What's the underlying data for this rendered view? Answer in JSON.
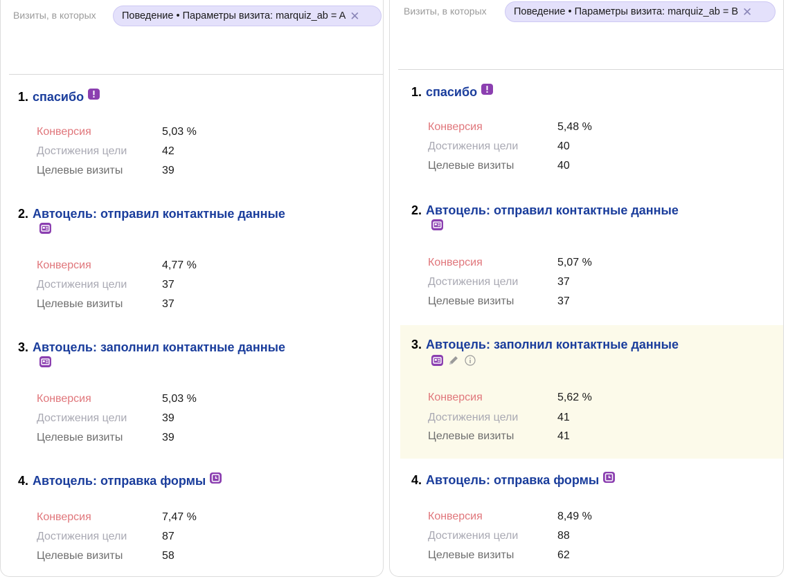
{
  "panels": [
    {
      "filter_label": "Визиты, в которых",
      "chip": "Поведение • Параметры визита: marquiz_ab = A",
      "goals": [
        {
          "num": "1.",
          "name": "спасибо",
          "icon": "exclamation-badge-icon",
          "conv_label": "Конверсия",
          "conv": "5,03 %",
          "reach_label": "Достижения цели",
          "reach": "42",
          "visits_label": "Целевые визиты",
          "visits": "39"
        },
        {
          "num": "2.",
          "name": "Автоцель: отправил контактные данные",
          "icon": "contact-card-icon",
          "conv_label": "Конверсия",
          "conv": "4,77 %",
          "reach_label": "Достижения цели",
          "reach": "37",
          "visits_label": "Целевые визиты",
          "visits": "37"
        },
        {
          "num": "3.",
          "name": "Автоцель: заполнил контактные данные",
          "icon": "contact-card-icon",
          "conv_label": "Конверсия",
          "conv": "5,03 %",
          "reach_label": "Достижения цели",
          "reach": "39",
          "visits_label": "Целевые визиты",
          "visits": "39"
        },
        {
          "num": "4.",
          "name": "Автоцель: отправка формы",
          "icon": "form-submit-icon",
          "conv_label": "Конверсия",
          "conv": "7,47 %",
          "reach_label": "Достижения цели",
          "reach": "87",
          "visits_label": "Целевые визиты",
          "visits": "58"
        }
      ]
    },
    {
      "filter_label": "Визиты, в которых",
      "chip": "Поведение • Параметры визита: marquiz_ab = B",
      "goals": [
        {
          "num": "1.",
          "name": "спасибо",
          "icon": "exclamation-badge-icon",
          "conv_label": "Конверсия",
          "conv": "5,48 %",
          "reach_label": "Достижения цели",
          "reach": "40",
          "visits_label": "Целевые визиты",
          "visits": "40"
        },
        {
          "num": "2.",
          "name": "Автоцель: отправил контактные данные",
          "icon": "contact-card-icon",
          "conv_label": "Конверсия",
          "conv": "5,07 %",
          "reach_label": "Достижения цели",
          "reach": "37",
          "visits_label": "Целевые визиты",
          "visits": "37"
        },
        {
          "num": "3.",
          "name": "Автоцель: заполнил контактные данные",
          "icon": "contact-card-icon",
          "extra_icons": [
            "edit-pencil-icon",
            "info-icon"
          ],
          "conv_label": "Конверсия",
          "conv": "5,62 %",
          "reach_label": "Достижения цели",
          "reach": "41",
          "visits_label": "Целевые визиты",
          "visits": "41"
        },
        {
          "num": "4.",
          "name": "Автоцель: отправка формы",
          "icon": "form-submit-icon",
          "conv_label": "Конверсия",
          "conv": "8,49 %",
          "reach_label": "Достижения цели",
          "reach": "88",
          "visits_label": "Целевые визиты",
          "visits": "62"
        }
      ]
    }
  ],
  "colors": {
    "goal_link": "#1a3d9c",
    "badge": "#8b3fb0",
    "conversion_label": "#e0767b",
    "chip_bg": "#e4e1fb",
    "highlight_bg": "#fcfaea"
  }
}
